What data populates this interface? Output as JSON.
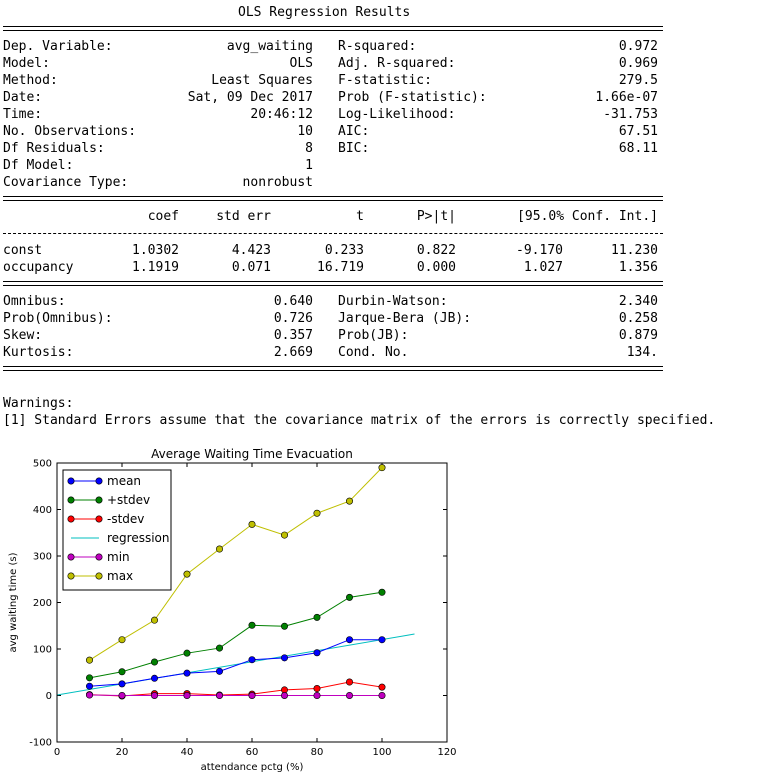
{
  "ols": {
    "title": "OLS Regression Results",
    "info_left": [
      {
        "label": "Dep. Variable:",
        "value": "avg_waiting"
      },
      {
        "label": "Model:",
        "value": "OLS"
      },
      {
        "label": "Method:",
        "value": "Least Squares"
      },
      {
        "label": "Date:",
        "value": "Sat, 09 Dec 2017"
      },
      {
        "label": "Time:",
        "value": "20:46:12"
      },
      {
        "label": "No. Observations:",
        "value": "10"
      },
      {
        "label": "Df Residuals:",
        "value": "8"
      },
      {
        "label": "Df Model:",
        "value": "1"
      },
      {
        "label": "Covariance Type:",
        "value": "nonrobust"
      }
    ],
    "info_right": [
      {
        "label": "R-squared:",
        "value": "0.972"
      },
      {
        "label": "Adj. R-squared:",
        "value": "0.969"
      },
      {
        "label": "F-statistic:",
        "value": "279.5"
      },
      {
        "label": "Prob (F-statistic):",
        "value": "1.66e-07"
      },
      {
        "label": "Log-Likelihood:",
        "value": "-31.753"
      },
      {
        "label": "AIC:",
        "value": "67.51"
      },
      {
        "label": "BIC:",
        "value": "68.11"
      }
    ],
    "coef_headers": [
      "coef",
      "std err",
      "t",
      "P>|t|",
      "[95.0% Conf. Int.]"
    ],
    "coef_rows": [
      {
        "name": "const",
        "coef": "1.0302",
        "std_err": "4.423",
        "t": "0.233",
        "p": "0.822",
        "ci_low": "-9.170",
        "ci_high": "11.230"
      },
      {
        "name": "occupancy",
        "coef": "1.1919",
        "std_err": "0.071",
        "t": "16.719",
        "p": "0.000",
        "ci_low": "1.027",
        "ci_high": "1.356"
      }
    ],
    "diag_left": [
      {
        "label": "Omnibus:",
        "value": "0.640"
      },
      {
        "label": "Prob(Omnibus):",
        "value": "0.726"
      },
      {
        "label": "Skew:",
        "value": "0.357"
      },
      {
        "label": "Kurtosis:",
        "value": "2.669"
      }
    ],
    "diag_right": [
      {
        "label": "Durbin-Watson:",
        "value": "2.340"
      },
      {
        "label": "Jarque-Bera (JB):",
        "value": "0.258"
      },
      {
        "label": "Prob(JB):",
        "value": "0.879"
      },
      {
        "label": "Cond. No.",
        "value": "134."
      }
    ]
  },
  "warnings": {
    "heading": "Warnings:",
    "items": [
      "[1] Standard Errors assume that the covariance matrix of the errors is correctly specified."
    ]
  },
  "chart_data": {
    "type": "line",
    "title": "Average Waiting Time Evacuation",
    "xlabel": "attendance pctg (%)",
    "ylabel": "avg waiting time (s)",
    "xlim": [
      0,
      120
    ],
    "ylim": [
      -100,
      500
    ],
    "xticks": [
      0,
      20,
      40,
      60,
      80,
      100,
      120
    ],
    "yticks": [
      -100,
      0,
      100,
      200,
      300,
      400,
      500
    ],
    "grid": false,
    "legend_position": "top-left",
    "x": [
      10,
      20,
      30,
      40,
      50,
      60,
      70,
      80,
      90,
      100
    ],
    "series": [
      {
        "name": "mean",
        "color": "#0000ff",
        "marker": true,
        "values": [
          20,
          25,
          37,
          48,
          52,
          77,
          81,
          92,
          120,
          120
        ]
      },
      {
        "name": "+stdev",
        "color": "#008000",
        "marker": true,
        "values": [
          38,
          51,
          72,
          91,
          102,
          151,
          149,
          168,
          211,
          222
        ]
      },
      {
        "name": "-stdev",
        "color": "#ff0000",
        "marker": true,
        "values": [
          2,
          -1,
          4,
          4,
          1,
          3,
          12,
          15,
          29,
          18
        ]
      },
      {
        "name": "min",
        "color": "#bf00bf",
        "marker": true,
        "values": [
          1,
          0,
          0,
          0,
          0,
          0,
          0,
          0,
          0,
          0
        ]
      },
      {
        "name": "max",
        "color": "#bfbf00",
        "marker": true,
        "values": [
          76,
          120,
          162,
          261,
          315,
          368,
          345,
          392,
          418,
          490
        ]
      }
    ],
    "regression": {
      "name": "regression",
      "color": "#00bfbf",
      "intercept": 1.0302,
      "slope": 1.1919,
      "x_range": [
        0,
        110
      ]
    }
  }
}
